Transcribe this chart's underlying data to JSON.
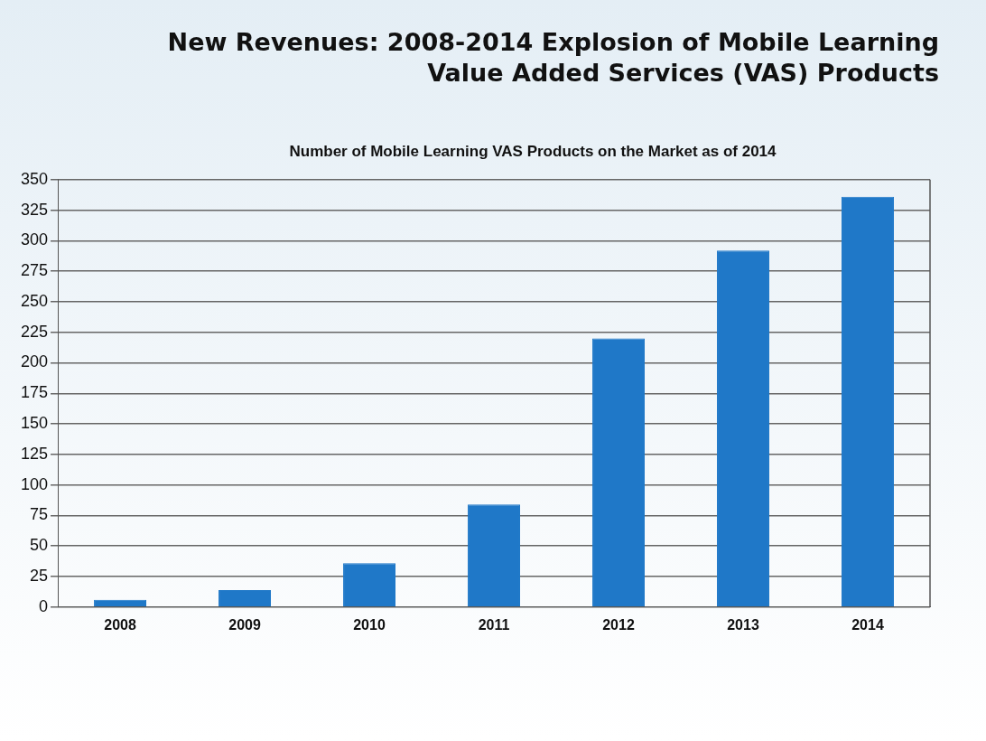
{
  "chart_data": {
    "type": "bar",
    "title": "New Revenues: 2008-2014 Explosion of Mobile Learning Value Added Services (VAS) Products",
    "subtitle": "Number of Mobile Learning VAS Products on the Market as of 2014",
    "categories": [
      "2008",
      "2009",
      "2010",
      "2011",
      "2012",
      "2013",
      "2014"
    ],
    "values": [
      6,
      14,
      36,
      84,
      220,
      292,
      336
    ],
    "color": "#1f78c8",
    "ylim": [
      0,
      350
    ],
    "yticks": [
      0,
      25,
      50,
      75,
      100,
      125,
      150,
      175,
      200,
      225,
      250,
      275,
      300,
      325,
      350
    ],
    "grid": "y",
    "legend": false
  }
}
